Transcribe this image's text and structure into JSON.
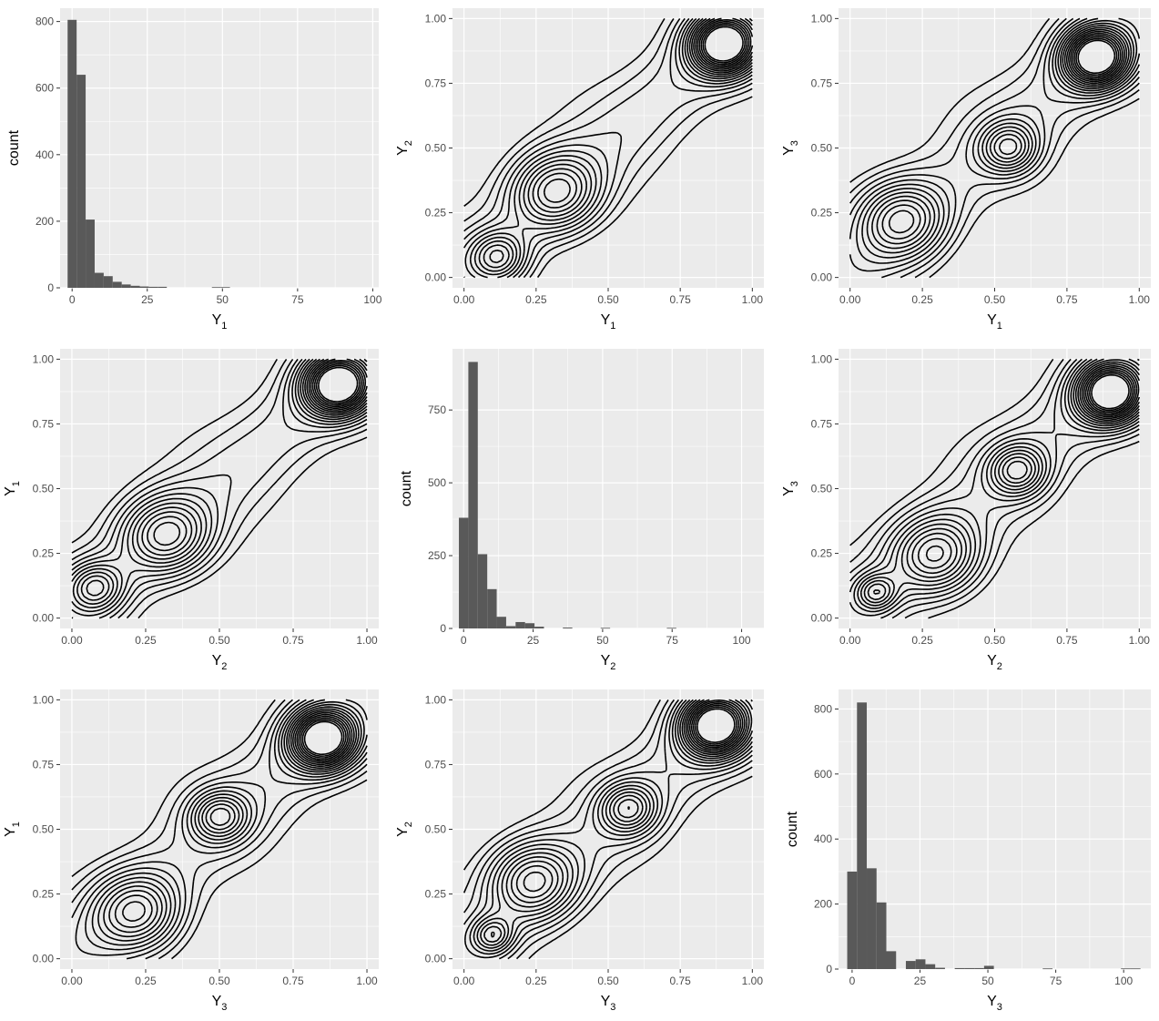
{
  "chart_data": [
    {
      "type": "bar",
      "kind": "histogram",
      "panel": "1-1",
      "xlabel": {
        "base": "Y",
        "sub": "1"
      },
      "ylabel": "count",
      "xlim": [
        -4,
        102
      ],
      "ylim": [
        0,
        840
      ],
      "xticks": [
        0,
        25,
        50,
        75,
        100
      ],
      "xtick_labels": [
        "0",
        "25",
        "50",
        "75",
        "100"
      ],
      "yticks": [
        0,
        200,
        400,
        600,
        800
      ],
      "ytick_labels": [
        "0",
        "200",
        "400",
        "600",
        "800"
      ],
      "bins": [
        {
          "x0": -1.5,
          "x1": 1.5,
          "value": 805
        },
        {
          "x0": 1.5,
          "x1": 4.5,
          "value": 640
        },
        {
          "x0": 4.5,
          "x1": 7.5,
          "value": 205
        },
        {
          "x0": 7.5,
          "x1": 10.5,
          "value": 45
        },
        {
          "x0": 10.5,
          "x1": 13.5,
          "value": 35
        },
        {
          "x0": 13.5,
          "x1": 16.5,
          "value": 18
        },
        {
          "x0": 16.5,
          "x1": 19.5,
          "value": 10
        },
        {
          "x0": 19.5,
          "x1": 22.5,
          "value": 6
        },
        {
          "x0": 22.5,
          "x1": 25.5,
          "value": 4
        },
        {
          "x0": 25.5,
          "x1": 28.5,
          "value": 3
        },
        {
          "x0": 28.5,
          "x1": 31.5,
          "value": 3
        },
        {
          "x0": 46.5,
          "x1": 49.5,
          "value": 2
        },
        {
          "x0": 49.5,
          "x1": 52.5,
          "value": 2
        }
      ]
    },
    {
      "type": "contour",
      "panel": "1-2",
      "xlabel": {
        "base": "Y",
        "sub": "1"
      },
      "ylabel": {
        "base": "Y",
        "sub": "2"
      },
      "xlim": [
        -0.04,
        1.04
      ],
      "ylim": [
        -0.04,
        1.04
      ],
      "ticks": [
        0,
        0.25,
        0.5,
        0.75,
        1
      ],
      "tick_labels": [
        "0.00",
        "0.25",
        "0.50",
        "0.75",
        "1.00"
      ],
      "modes": [
        {
          "x": 0.9,
          "y": 0.9
        },
        {
          "x": 0.32,
          "y": 0.33
        },
        {
          "x": 0.12,
          "y": 0.08
        }
      ]
    },
    {
      "type": "contour",
      "panel": "1-3",
      "xlabel": {
        "base": "Y",
        "sub": "1"
      },
      "ylabel": {
        "base": "Y",
        "sub": "3"
      },
      "xlim": [
        -0.04,
        1.04
      ],
      "ylim": [
        -0.04,
        1.04
      ],
      "ticks": [
        0,
        0.25,
        0.5,
        0.75,
        1
      ],
      "tick_labels": [
        "0.00",
        "0.25",
        "0.50",
        "0.75",
        "1.00"
      ],
      "modes": [
        {
          "x": 0.85,
          "y": 0.85
        },
        {
          "x": 0.18,
          "y": 0.22
        },
        {
          "x": 0.55,
          "y": 0.5
        }
      ]
    },
    {
      "type": "contour",
      "panel": "2-1",
      "xlabel": {
        "base": "Y",
        "sub": "2"
      },
      "ylabel": {
        "base": "Y",
        "sub": "1"
      },
      "xlim": [
        -0.04,
        1.04
      ],
      "ylim": [
        -0.04,
        1.04
      ],
      "ticks": [
        0,
        0.25,
        0.5,
        0.75,
        1
      ],
      "tick_labels": [
        "0.00",
        "0.25",
        "0.50",
        "0.75",
        "1.00"
      ],
      "modes": [
        {
          "x": 0.9,
          "y": 0.9
        },
        {
          "x": 0.32,
          "y": 0.32
        },
        {
          "x": 0.08,
          "y": 0.12
        }
      ]
    },
    {
      "type": "bar",
      "kind": "histogram",
      "panel": "2-2",
      "xlabel": {
        "base": "Y",
        "sub": "2"
      },
      "ylabel": "count",
      "xlim": [
        -4,
        108
      ],
      "ylim": [
        0,
        960
      ],
      "xticks": [
        0,
        25,
        50,
        75,
        100
      ],
      "xtick_labels": [
        "0",
        "25",
        "50",
        "75",
        "100"
      ],
      "yticks": [
        0,
        250,
        500,
        750
      ],
      "ytick_labels": [
        "0",
        "250",
        "500",
        "750"
      ],
      "bins": [
        {
          "x0": -1.7,
          "x1": 1.7,
          "value": 380
        },
        {
          "x0": 1.7,
          "x1": 5.1,
          "value": 915
        },
        {
          "x0": 5.1,
          "x1": 8.5,
          "value": 255
        },
        {
          "x0": 8.5,
          "x1": 11.9,
          "value": 135
        },
        {
          "x0": 11.9,
          "x1": 15.3,
          "value": 40
        },
        {
          "x0": 15.3,
          "x1": 18.7,
          "value": 8
        },
        {
          "x0": 18.7,
          "x1": 22.1,
          "value": 22
        },
        {
          "x0": 22.1,
          "x1": 25.5,
          "value": 18
        },
        {
          "x0": 25.5,
          "x1": 28.9,
          "value": 6
        },
        {
          "x0": 35.7,
          "x1": 39.1,
          "value": 3
        },
        {
          "x0": 49.3,
          "x1": 52.7,
          "value": 2
        },
        {
          "x0": 73.1,
          "x1": 76.5,
          "value": 2
        }
      ]
    },
    {
      "type": "contour",
      "panel": "2-3",
      "xlabel": {
        "base": "Y",
        "sub": "2"
      },
      "ylabel": {
        "base": "Y",
        "sub": "3"
      },
      "xlim": [
        -0.04,
        1.04
      ],
      "ylim": [
        -0.04,
        1.04
      ],
      "ticks": [
        0,
        0.25,
        0.5,
        0.75,
        1
      ],
      "tick_labels": [
        "0.00",
        "0.25",
        "0.50",
        "0.75",
        "1.00"
      ],
      "modes": [
        {
          "x": 0.9,
          "y": 0.87
        },
        {
          "x": 0.3,
          "y": 0.24
        },
        {
          "x": 0.58,
          "y": 0.57
        },
        {
          "x": 0.09,
          "y": 0.1
        }
      ]
    },
    {
      "type": "contour",
      "panel": "3-1",
      "xlabel": {
        "base": "Y",
        "sub": "3"
      },
      "ylabel": {
        "base": "Y",
        "sub": "1"
      },
      "xlim": [
        -0.04,
        1.04
      ],
      "ylim": [
        -0.04,
        1.04
      ],
      "ticks": [
        0,
        0.25,
        0.5,
        0.75,
        1
      ],
      "tick_labels": [
        "0.00",
        "0.25",
        "0.50",
        "0.75",
        "1.00"
      ],
      "modes": [
        {
          "x": 0.85,
          "y": 0.85
        },
        {
          "x": 0.22,
          "y": 0.18
        },
        {
          "x": 0.5,
          "y": 0.55
        }
      ]
    },
    {
      "type": "contour",
      "panel": "3-2",
      "xlabel": {
        "base": "Y",
        "sub": "3"
      },
      "ylabel": {
        "base": "Y",
        "sub": "2"
      },
      "xlim": [
        -0.04,
        1.04
      ],
      "ylim": [
        -0.04,
        1.04
      ],
      "ticks": [
        0,
        0.25,
        0.5,
        0.75,
        1
      ],
      "tick_labels": [
        "0.00",
        "0.25",
        "0.50",
        "0.75",
        "1.00"
      ],
      "modes": [
        {
          "x": 0.87,
          "y": 0.9
        },
        {
          "x": 0.24,
          "y": 0.3
        },
        {
          "x": 0.57,
          "y": 0.58
        },
        {
          "x": 0.1,
          "y": 0.09
        }
      ]
    },
    {
      "type": "bar",
      "kind": "histogram",
      "panel": "3-3",
      "xlabel": {
        "base": "Y",
        "sub": "3"
      },
      "ylabel": "count",
      "xlim": [
        -5,
        110
      ],
      "ylim": [
        0,
        860
      ],
      "xticks": [
        0,
        25,
        50,
        75,
        100
      ],
      "xtick_labels": [
        "0",
        "25",
        "50",
        "75",
        "100"
      ],
      "yticks": [
        0,
        200,
        400,
        600,
        800
      ],
      "ytick_labels": [
        "0",
        "200",
        "400",
        "600",
        "800"
      ],
      "bins": [
        {
          "x0": -1.8,
          "x1": 1.8,
          "value": 300
        },
        {
          "x0": 1.8,
          "x1": 5.4,
          "value": 820
        },
        {
          "x0": 5.4,
          "x1": 9.0,
          "value": 310
        },
        {
          "x0": 9.0,
          "x1": 12.6,
          "value": 205
        },
        {
          "x0": 12.6,
          "x1": 16.2,
          "value": 55
        },
        {
          "x0": 19.8,
          "x1": 23.4,
          "value": 25
        },
        {
          "x0": 23.4,
          "x1": 27.0,
          "value": 30
        },
        {
          "x0": 27.0,
          "x1": 30.6,
          "value": 15
        },
        {
          "x0": 30.6,
          "x1": 34.2,
          "value": 4
        },
        {
          "x0": 37.8,
          "x1": 41.4,
          "value": 3
        },
        {
          "x0": 41.4,
          "x1": 45.0,
          "value": 3
        },
        {
          "x0": 45.0,
          "x1": 48.6,
          "value": 3
        },
        {
          "x0": 48.6,
          "x1": 52.2,
          "value": 10
        },
        {
          "x0": 70.2,
          "x1": 73.8,
          "value": 2
        },
        {
          "x0": 99.0,
          "x1": 102.6,
          "value": 2
        },
        {
          "x0": 102.6,
          "x1": 106.2,
          "value": 2
        }
      ]
    }
  ]
}
